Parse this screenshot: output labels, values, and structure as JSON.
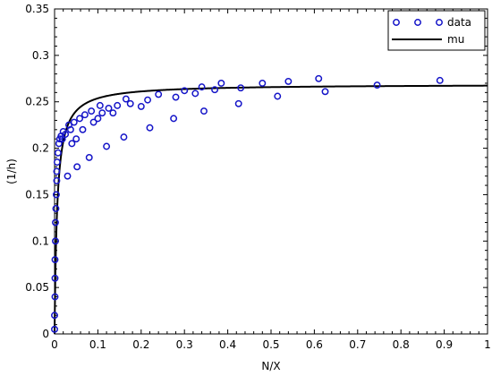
{
  "chart_data": {
    "type": "scatter",
    "xlabel": "N/X",
    "ylabel": "(1/h)",
    "xlim": [
      0,
      1
    ],
    "ylim": [
      0,
      0.35
    ],
    "grid": false,
    "legend_placement": "top-right",
    "x_ticks": [
      0,
      0.1,
      0.2,
      0.3,
      0.4,
      0.5,
      0.6,
      0.7,
      0.8,
      0.9,
      1
    ],
    "x_tick_labels": [
      "0",
      "0.1",
      "0.2",
      "0.3",
      "0.4",
      "0.5",
      "0.6",
      "0.7",
      "0.8",
      "0.9",
      "1"
    ],
    "y_ticks": [
      0,
      0.05,
      0.1,
      0.15,
      0.2,
      0.25,
      0.3,
      0.35
    ],
    "y_tick_labels": [
      "0",
      "0.05",
      "0.1",
      "0.15",
      "0.2",
      "0.25",
      "0.3",
      "0.35"
    ],
    "series": [
      {
        "name": "data",
        "kind": "scatter",
        "marker": "circle-open",
        "color": "#1414c8",
        "points": [
          [
            0.0,
            0.005
          ],
          [
            0.0,
            0.02
          ],
          [
            0.001,
            0.04
          ],
          [
            0.001,
            0.06
          ],
          [
            0.001,
            0.08
          ],
          [
            0.002,
            0.1
          ],
          [
            0.002,
            0.12
          ],
          [
            0.003,
            0.135
          ],
          [
            0.004,
            0.15
          ],
          [
            0.005,
            0.165
          ],
          [
            0.005,
            0.175
          ],
          [
            0.006,
            0.185
          ],
          [
            0.008,
            0.195
          ],
          [
            0.01,
            0.205
          ],
          [
            0.012,
            0.21
          ],
          [
            0.015,
            0.213
          ],
          [
            0.018,
            0.21
          ],
          [
            0.02,
            0.218
          ],
          [
            0.025,
            0.215
          ],
          [
            0.03,
            0.17
          ],
          [
            0.033,
            0.225
          ],
          [
            0.037,
            0.22
          ],
          [
            0.04,
            0.205
          ],
          [
            0.045,
            0.228
          ],
          [
            0.05,
            0.21
          ],
          [
            0.052,
            0.18
          ],
          [
            0.058,
            0.232
          ],
          [
            0.065,
            0.22
          ],
          [
            0.07,
            0.236
          ],
          [
            0.08,
            0.19
          ],
          [
            0.085,
            0.24
          ],
          [
            0.09,
            0.228
          ],
          [
            0.1,
            0.232
          ],
          [
            0.105,
            0.246
          ],
          [
            0.11,
            0.238
          ],
          [
            0.12,
            0.202
          ],
          [
            0.125,
            0.243
          ],
          [
            0.135,
            0.238
          ],
          [
            0.145,
            0.246
          ],
          [
            0.16,
            0.212
          ],
          [
            0.165,
            0.253
          ],
          [
            0.175,
            0.248
          ],
          [
            0.2,
            0.245
          ],
          [
            0.215,
            0.252
          ],
          [
            0.22,
            0.222
          ],
          [
            0.24,
            0.258
          ],
          [
            0.275,
            0.232
          ],
          [
            0.28,
            0.255
          ],
          [
            0.3,
            0.262
          ],
          [
            0.325,
            0.259
          ],
          [
            0.34,
            0.266
          ],
          [
            0.345,
            0.24
          ],
          [
            0.37,
            0.263
          ],
          [
            0.385,
            0.27
          ],
          [
            0.425,
            0.248
          ],
          [
            0.43,
            0.265
          ],
          [
            0.48,
            0.27
          ],
          [
            0.515,
            0.256
          ],
          [
            0.54,
            0.272
          ],
          [
            0.61,
            0.275
          ],
          [
            0.625,
            0.261
          ],
          [
            0.745,
            0.268
          ],
          [
            0.89,
            0.273
          ]
        ]
      },
      {
        "name": "mu",
        "kind": "line",
        "color": "#000000",
        "model": "saturation",
        "mu_max": 0.269,
        "k": 0.006,
        "x_min": 0.0,
        "x_max": 1.0
      }
    ]
  }
}
